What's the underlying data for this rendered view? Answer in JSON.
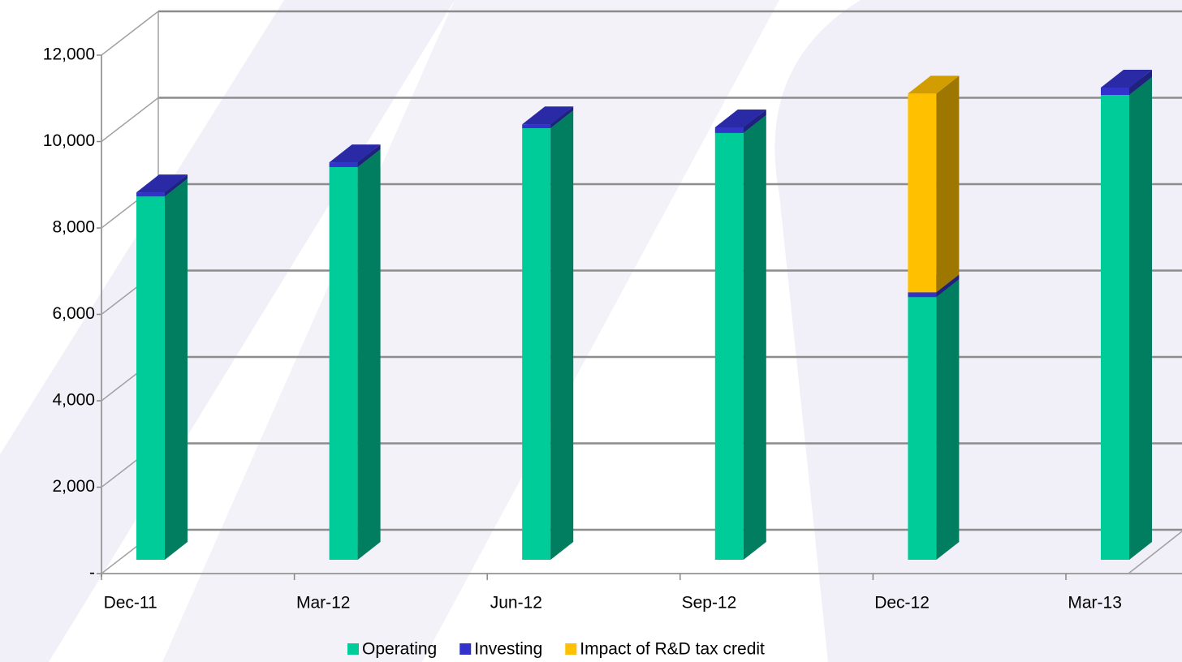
{
  "chart_data": {
    "type": "bar3d_stacked",
    "categories": [
      "Dec-11",
      "Mar-12",
      "Jun-12",
      "Sep-12",
      "Dec-12",
      "Mar-13"
    ],
    "series": [
      {
        "name": "Operating",
        "color": "#00cc99",
        "values": [
          8410,
          9090,
          9990,
          9880,
          6080,
          10760
        ]
      },
      {
        "name": "Investing",
        "color": "#3333cc",
        "values": [
          95,
          110,
          90,
          130,
          110,
          170
        ]
      },
      {
        "name": "Impact of R&D tax credit",
        "color": "#ffc000",
        "values": [
          null,
          null,
          null,
          null,
          4600,
          null
        ]
      }
    ],
    "ylim": [
      0,
      12000
    ],
    "yticks": [
      {
        "value": 0,
        "label": "-"
      },
      {
        "value": 2000,
        "label": "2,000"
      },
      {
        "value": 4000,
        "label": "4,000"
      },
      {
        "value": 6000,
        "label": "6,000"
      },
      {
        "value": 8000,
        "label": "8,000"
      },
      {
        "value": 10000,
        "label": "10,000"
      },
      {
        "value": 12000,
        "label": "12,000"
      }
    ],
    "grid": true,
    "legend": "bottom"
  }
}
